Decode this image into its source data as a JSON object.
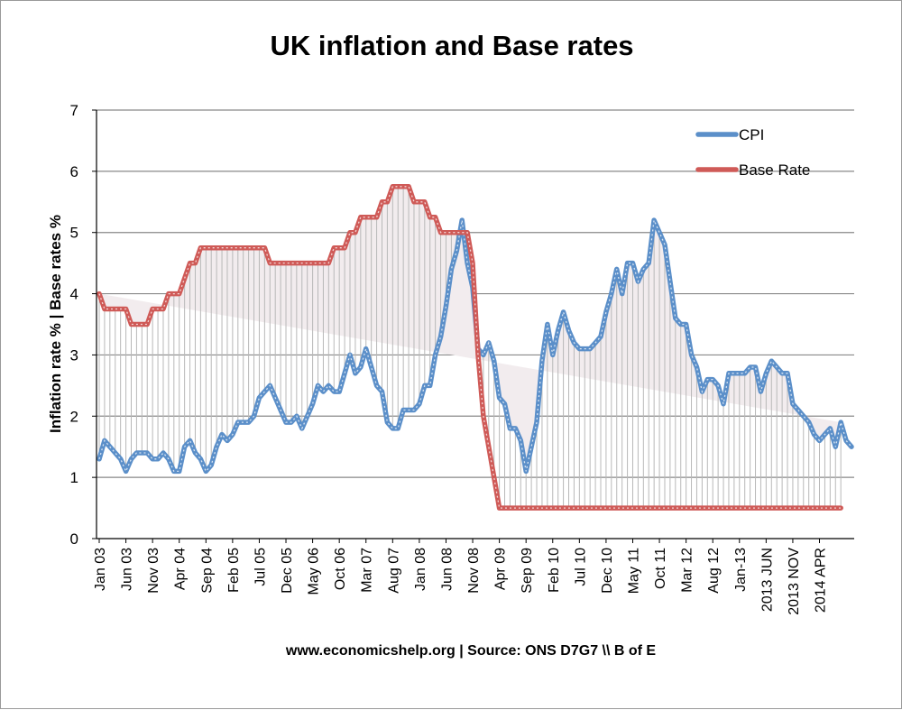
{
  "chart_data": {
    "type": "line",
    "title": "UK inflation and Base rates",
    "ylabel": "Inflation rate % | Base rates %",
    "xlabel": "",
    "source": "www.economicshelp.org | Source: ONS D7G7 \\\\ B of E",
    "ylim": [
      0,
      7
    ],
    "yticks": [
      0,
      1,
      2,
      3,
      4,
      5,
      6,
      7
    ],
    "grid": "horizontal",
    "legend_position": "top-right",
    "x_tick_labels": [
      "Jan 03",
      "Jun 03",
      "Nov 03",
      "Apr 04",
      "Sep 04",
      "Feb 05",
      "Jul 05",
      "Dec 05",
      "May 06",
      "Oct 06",
      "Mar 07",
      "Aug 07",
      "Jan 08",
      "Jun 08",
      "Nov 08",
      "Apr 09",
      "Sep 09",
      "Feb 10",
      "Jul 10",
      "Dec 10",
      "May 11",
      "Oct 11",
      "Mar 12",
      "Aug 12",
      "Jan-13",
      "2013 JUN",
      "2013 NOV",
      "2014 APR"
    ],
    "colors": {
      "cpi": "#5b8fc9",
      "base": "#cf5a57",
      "grid": "#898989",
      "drop": "#b8b8b8"
    },
    "series": [
      {
        "name": "CPI",
        "values": [
          1.3,
          1.6,
          1.5,
          1.4,
          1.3,
          1.1,
          1.3,
          1.4,
          1.4,
          1.4,
          1.3,
          1.3,
          1.4,
          1.3,
          1.1,
          1.1,
          1.5,
          1.6,
          1.4,
          1.3,
          1.1,
          1.2,
          1.5,
          1.7,
          1.6,
          1.7,
          1.9,
          1.9,
          1.9,
          2.0,
          2.3,
          2.4,
          2.5,
          2.3,
          2.1,
          1.9,
          1.9,
          2.0,
          1.8,
          2.0,
          2.2,
          2.5,
          2.4,
          2.5,
          2.4,
          2.4,
          2.7,
          3.0,
          2.7,
          2.8,
          3.1,
          2.8,
          2.5,
          2.4,
          1.9,
          1.8,
          1.8,
          2.1,
          2.1,
          2.1,
          2.2,
          2.5,
          2.5,
          3.0,
          3.3,
          3.8,
          4.4,
          4.7,
          5.2,
          4.5,
          4.1,
          3.1,
          3.0,
          3.2,
          2.9,
          2.3,
          2.2,
          1.8,
          1.8,
          1.6,
          1.1,
          1.5,
          1.9,
          2.9,
          3.5,
          3.0,
          3.4,
          3.7,
          3.4,
          3.2,
          3.1,
          3.1,
          3.1,
          3.2,
          3.3,
          3.7,
          4.0,
          4.4,
          4.0,
          4.5,
          4.5,
          4.2,
          4.4,
          4.5,
          5.2,
          5.0,
          4.8,
          4.2,
          3.6,
          3.5,
          3.5,
          3.0,
          2.8,
          2.4,
          2.6,
          2.6,
          2.5,
          2.2,
          2.7,
          2.7,
          2.7,
          2.7,
          2.8,
          2.8,
          2.4,
          2.7,
          2.9,
          2.8,
          2.7,
          2.7,
          2.2,
          2.1,
          2.0,
          1.9,
          1.7,
          1.6,
          1.7,
          1.8,
          1.5,
          1.9,
          1.6,
          1.5
        ]
      },
      {
        "name": "Base Rate",
        "values": [
          4.0,
          3.75,
          3.75,
          3.75,
          3.75,
          3.75,
          3.5,
          3.5,
          3.5,
          3.5,
          3.75,
          3.75,
          3.75,
          4.0,
          4.0,
          4.0,
          4.25,
          4.5,
          4.5,
          4.75,
          4.75,
          4.75,
          4.75,
          4.75,
          4.75,
          4.75,
          4.75,
          4.75,
          4.75,
          4.75,
          4.75,
          4.75,
          4.5,
          4.5,
          4.5,
          4.5,
          4.5,
          4.5,
          4.5,
          4.5,
          4.5,
          4.5,
          4.5,
          4.5,
          4.75,
          4.75,
          4.75,
          5.0,
          5.0,
          5.25,
          5.25,
          5.25,
          5.25,
          5.5,
          5.5,
          5.75,
          5.75,
          5.75,
          5.75,
          5.5,
          5.5,
          5.5,
          5.25,
          5.25,
          5.0,
          5.0,
          5.0,
          5.0,
          5.0,
          5.0,
          4.5,
          3.0,
          2.0,
          1.5,
          1.0,
          0.5,
          0.5,
          0.5,
          0.5,
          0.5,
          0.5,
          0.5,
          0.5,
          0.5,
          0.5,
          0.5,
          0.5,
          0.5,
          0.5,
          0.5,
          0.5,
          0.5,
          0.5,
          0.5,
          0.5,
          0.5,
          0.5,
          0.5,
          0.5,
          0.5,
          0.5,
          0.5,
          0.5,
          0.5,
          0.5,
          0.5,
          0.5,
          0.5,
          0.5,
          0.5,
          0.5,
          0.5,
          0.5,
          0.5,
          0.5,
          0.5,
          0.5,
          0.5,
          0.5,
          0.5,
          0.5,
          0.5,
          0.5,
          0.5,
          0.5,
          0.5,
          0.5,
          0.5,
          0.5,
          0.5,
          0.5,
          0.5,
          0.5,
          0.5,
          0.5,
          0.5,
          0.5,
          0.5,
          0.5,
          0.5
        ]
      }
    ]
  }
}
